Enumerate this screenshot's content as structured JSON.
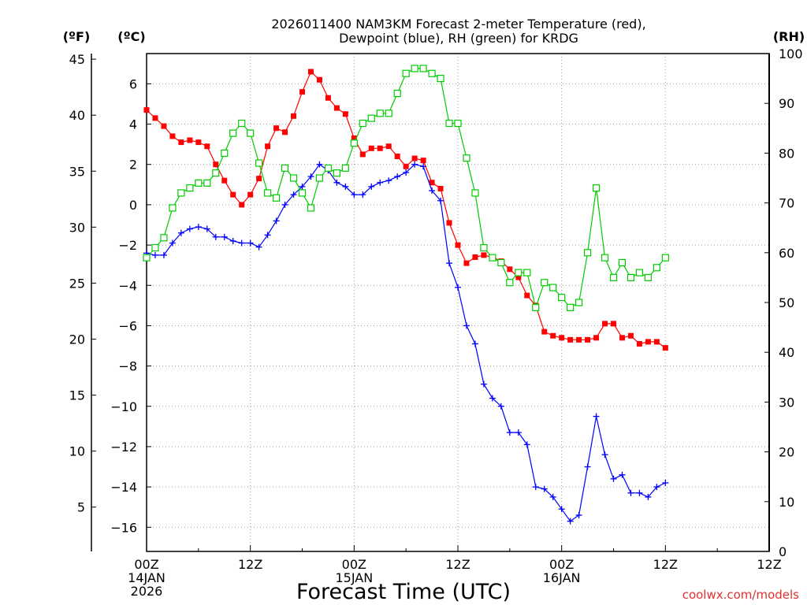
{
  "chart_data": {
    "type": "line",
    "title_line1": "2026011400 NAM3KM Forecast 2-meter Temperature (red),",
    "title_line2": "Dewpoint (blue), RH (green) for KRDG",
    "xlabel": "Forecast Time (UTC)",
    "credit": "coolwx.com/models",
    "axis_label_f": "(ºF)",
    "axis_label_c": "(ºC)",
    "axis_label_rh": "(RH)",
    "xlim_hours": [
      0,
      36
    ],
    "ylim_c": [
      -17.2,
      7.5
    ],
    "ylim_rh": [
      0,
      100
    ],
    "x_ticks": [
      {
        "hour": 0,
        "lines": [
          "00Z",
          "14JAN",
          "2026"
        ]
      },
      {
        "hour": 6,
        "lines": [
          "12Z"
        ]
      },
      {
        "hour": 12,
        "lines": [
          "00Z",
          "15JAN"
        ]
      },
      {
        "hour": 18,
        "lines": [
          "12Z"
        ]
      },
      {
        "hour": 24,
        "lines": [
          "00Z",
          "16JAN"
        ]
      },
      {
        "hour": 30,
        "lines": [
          "12Z"
        ]
      }
    ],
    "c_ticks": [
      "6",
      "4",
      "2",
      "0",
      "−2",
      "−4",
      "−6",
      "−8",
      "−10",
      "−12",
      "−14",
      "−16"
    ],
    "c_tick_values": [
      6,
      4,
      2,
      0,
      -2,
      -4,
      -6,
      -8,
      -10,
      -12,
      -14,
      -16
    ],
    "f_ticks": [
      "45",
      "40",
      "35",
      "30",
      "25",
      "20",
      "15",
      "10",
      "5"
    ],
    "f_tick_values": [
      45,
      40,
      35,
      30,
      25,
      20,
      15,
      10,
      5
    ],
    "rh_ticks": [
      "100",
      "90",
      "80",
      "70",
      "60",
      "50",
      "40",
      "30",
      "20",
      "10",
      "0"
    ],
    "rh_tick_values": [
      100,
      90,
      80,
      70,
      60,
      50,
      40,
      30,
      20,
      10,
      0
    ],
    "series": [
      {
        "name": "2-meter Temperature",
        "unit": "C",
        "color": "#ff0000",
        "marker": "filled-square",
        "hours": [
          0,
          0.5,
          1,
          1.5,
          2,
          2.5,
          3,
          3.5,
          4,
          4.5,
          5,
          5.5,
          6,
          6.5,
          7,
          7.5,
          8,
          8.5,
          9,
          9.5,
          10,
          10.5,
          11,
          11.5,
          12,
          12.5,
          13,
          13.5,
          14,
          14.5,
          15,
          15.5,
          16,
          16.5,
          17,
          17.5,
          18,
          18.5,
          19,
          19.5,
          20,
          20.5,
          21,
          21.5,
          22,
          22.5,
          23,
          23.5,
          24,
          24.5,
          25,
          25.5,
          26,
          26.5,
          27,
          27.5,
          28,
          28.5,
          29,
          29.5,
          30
        ],
        "values": [
          4.7,
          4.3,
          3.9,
          3.4,
          3.1,
          3.2,
          3.1,
          2.9,
          2.0,
          1.2,
          0.5,
          0.0,
          0.5,
          1.3,
          2.9,
          3.8,
          3.6,
          4.4,
          5.6,
          6.6,
          6.2,
          5.3,
          4.8,
          4.5,
          3.3,
          2.5,
          2.8,
          2.8,
          2.9,
          2.4,
          1.9,
          2.3,
          2.2,
          1.1,
          0.8,
          -0.9,
          -2.0,
          -2.9,
          -2.6,
          -2.5,
          -2.6,
          -2.8,
          -3.2,
          -3.6,
          -4.5,
          -5.0,
          -6.3,
          -6.5,
          -6.6,
          -6.7,
          -6.7,
          -6.7,
          -6.6,
          -5.9,
          -5.9,
          -6.6,
          -6.5,
          -6.9,
          -6.8,
          -6.8,
          -7.1
        ]
      },
      {
        "name": "Dewpoint",
        "unit": "C",
        "color": "#0000ff",
        "marker": "plus",
        "hours": [
          0,
          0.5,
          1,
          1.5,
          2,
          2.5,
          3,
          3.5,
          4,
          4.5,
          5,
          5.5,
          6,
          6.5,
          7,
          7.5,
          8,
          8.5,
          9,
          9.5,
          10,
          10.5,
          11,
          11.5,
          12,
          12.5,
          13,
          13.5,
          14,
          14.5,
          15,
          15.5,
          16,
          16.5,
          17,
          17.5,
          18,
          18.5,
          19,
          19.5,
          20,
          20.5,
          21,
          21.5,
          22,
          22.5,
          23,
          23.5,
          24,
          24.5,
          25,
          25.5,
          26,
          26.5,
          27,
          27.5,
          28,
          28.5,
          29,
          29.5,
          30
        ],
        "values": [
          -2.4,
          -2.5,
          -2.5,
          -1.9,
          -1.4,
          -1.2,
          -1.1,
          -1.2,
          -1.6,
          -1.6,
          -1.8,
          -1.9,
          -1.9,
          -2.1,
          -1.5,
          -0.8,
          0.0,
          0.5,
          0.9,
          1.4,
          2.0,
          1.7,
          1.1,
          0.9,
          0.5,
          0.5,
          0.9,
          1.1,
          1.2,
          1.4,
          1.6,
          2.0,
          1.9,
          0.7,
          0.2,
          -2.9,
          -4.1,
          -6.0,
          -6.9,
          -8.9,
          -9.6,
          -10.0,
          -11.3,
          -11.3,
          -11.9,
          -14.0,
          -14.1,
          -14.5,
          -15.1,
          -15.7,
          -15.4,
          -13.0,
          -10.5,
          -12.4,
          -13.6,
          -13.4,
          -14.3,
          -14.3,
          -14.5,
          -14.0,
          -13.8
        ]
      },
      {
        "name": "RH",
        "unit": "%",
        "color": "#00cc00",
        "marker": "open-square",
        "hours": [
          0,
          0.5,
          1,
          1.5,
          2,
          2.5,
          3,
          3.5,
          4,
          4.5,
          5,
          5.5,
          6,
          6.5,
          7,
          7.5,
          8,
          8.5,
          9,
          9.5,
          10,
          10.5,
          11,
          11.5,
          12,
          12.5,
          13,
          13.5,
          14,
          14.5,
          15,
          15.5,
          16,
          16.5,
          17,
          17.5,
          18,
          18.5,
          19,
          19.5,
          20,
          20.5,
          21,
          21.5,
          22,
          22.5,
          23,
          23.5,
          24,
          24.5,
          25,
          25.5,
          26,
          26.5,
          27,
          27.5,
          28,
          28.5,
          29,
          29.5,
          30
        ],
        "values": [
          59,
          61,
          63,
          69,
          72,
          73,
          74,
          74,
          76,
          80,
          84,
          86,
          84,
          78,
          72,
          71,
          77,
          75,
          72,
          69,
          75,
          77,
          76,
          77,
          82,
          86,
          87,
          88,
          88,
          92,
          96,
          97,
          97,
          96,
          95,
          86,
          86,
          79,
          72,
          61,
          59,
          58,
          54,
          56,
          56,
          49,
          54,
          53,
          51,
          49,
          50,
          60,
          73,
          59,
          55,
          58,
          55,
          56,
          55,
          57,
          59
        ]
      }
    ]
  }
}
